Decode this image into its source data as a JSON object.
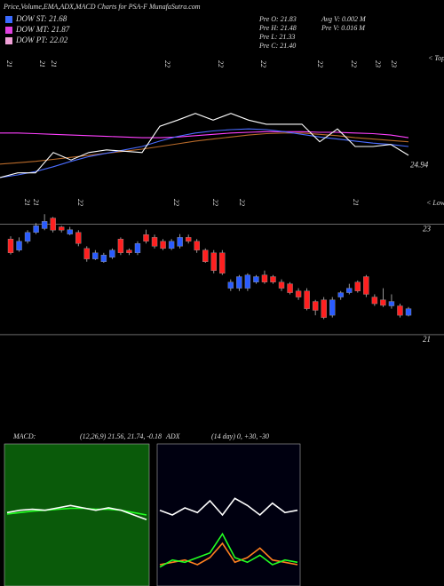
{
  "header": {
    "title": "Price,Volume,EMA,ADX,MACD Charts for PSA-F MunafaSutra.com",
    "legend": [
      {
        "label": "DOW ST: 21.68",
        "color": "#3b6bff"
      },
      {
        "label": "DOW MT: 21.87",
        "color": "#e040e0"
      },
      {
        "label": "DOW PT: 22.02",
        "color": "#f0a0d8"
      }
    ],
    "stats": [
      "Pre O: 21.83",
      "Pre H: 21.48",
      "Pre L: 21.33",
      "Pre C: 21.40",
      "Avg V: 0.002 M",
      "Pre V: 0.016 M"
    ]
  },
  "chart_data": [
    {
      "type": "line",
      "tops_label": "< Tops",
      "lows_label": "< Lows",
      "top_dates": [
        "21",
        "21",
        "21",
        "22",
        "22",
        "22",
        "22",
        "22",
        "23",
        "23"
      ],
      "low_dates": [
        "21",
        "21",
        "22",
        "22",
        "22",
        "22",
        "21"
      ],
      "ylim": [
        24.3,
        26.6
      ],
      "yticks": [
        24.94
      ],
      "series": [
        {
          "color": "#ff40ff",
          "values": [
            25.42,
            25.42,
            25.41,
            25.4,
            25.39,
            25.38,
            25.37,
            25.36,
            25.35,
            25.35,
            25.36,
            25.38,
            25.4,
            25.42,
            25.43,
            25.44,
            25.44,
            25.44,
            25.43,
            25.43,
            25.42,
            25.41,
            25.39,
            25.35
          ]
        },
        {
          "color": "#b86a2a",
          "values": [
            24.96,
            24.98,
            25.0,
            25.03,
            25.06,
            25.09,
            25.12,
            25.15,
            25.18,
            25.22,
            25.26,
            25.3,
            25.33,
            25.36,
            25.39,
            25.41,
            25.42,
            25.42,
            25.4,
            25.38,
            25.35,
            25.33,
            25.31,
            25.29
          ]
        },
        {
          "color": "#4a6cff",
          "values": [
            24.76,
            24.8,
            24.85,
            24.92,
            25.0,
            25.07,
            25.12,
            25.17,
            25.22,
            25.3,
            25.37,
            25.42,
            25.45,
            25.47,
            25.48,
            25.47,
            25.44,
            25.4,
            25.36,
            25.33,
            25.3,
            25.27,
            25.25,
            25.22
          ]
        },
        {
          "color": "#ffffff",
          "values": [
            24.76,
            24.83,
            24.83,
            25.13,
            25.02,
            25.13,
            25.17,
            25.15,
            25.13,
            25.52,
            25.61,
            25.71,
            25.61,
            25.71,
            25.61,
            25.55,
            25.55,
            25.55,
            25.29,
            25.48,
            25.22,
            25.22,
            25.25,
            25.09
          ]
        }
      ]
    },
    {
      "type": "candlestick",
      "ylim": [
        20.95,
        23.2
      ],
      "yticks": [
        21,
        23
      ],
      "grid": true,
      "up_color": "#2a5cff",
      "down_color": "#ff2020",
      "open": [
        22.73,
        22.53,
        22.69,
        22.85,
        22.92,
        23.11,
        22.95,
        22.82,
        22.85,
        22.56,
        22.37,
        22.32,
        22.4,
        22.73,
        22.53,
        22.48,
        22.81,
        22.76,
        22.69,
        22.56,
        22.6,
        22.76,
        22.69,
        22.53,
        22.48,
        22.48,
        21.84,
        21.84,
        21.84,
        21.95,
        22.08,
        22.05,
        21.95,
        21.92,
        21.79,
        21.79,
        21.6,
        21.63,
        21.35,
        21.68,
        21.76,
        21.95,
        22.05,
        21.68,
        21.63,
        21.52,
        21.52,
        21.35
      ],
      "high": [
        22.78,
        22.76,
        22.89,
        23.02,
        23.18,
        23.13,
        22.97,
        22.95,
        22.89,
        22.6,
        22.53,
        22.48,
        22.56,
        22.76,
        22.56,
        22.69,
        22.9,
        22.81,
        22.73,
        22.73,
        22.82,
        22.81,
        22.73,
        22.56,
        22.53,
        22.53,
        22.0,
        22.08,
        22.11,
        22.08,
        22.16,
        22.08,
        22.0,
        21.95,
        21.84,
        21.84,
        21.63,
        21.68,
        21.68,
        21.79,
        21.92,
        21.98,
        22.08,
        21.73,
        21.84,
        21.73,
        21.56,
        21.5
      ],
      "low": [
        22.45,
        22.5,
        22.65,
        22.82,
        22.89,
        22.85,
        22.85,
        22.8,
        22.6,
        22.32,
        22.35,
        22.3,
        22.37,
        22.44,
        22.44,
        22.44,
        22.65,
        22.56,
        22.53,
        22.53,
        22.56,
        22.65,
        22.48,
        22.3,
        22.11,
        22.08,
        21.79,
        21.79,
        21.79,
        21.92,
        21.92,
        21.92,
        21.79,
        21.73,
        21.63,
        21.44,
        21.35,
        21.28,
        21.31,
        21.63,
        21.73,
        21.76,
        21.68,
        21.52,
        21.5,
        21.47,
        21.31,
        21.33
      ],
      "close": [
        22.48,
        22.69,
        22.85,
        22.97,
        23.05,
        22.89,
        22.89,
        22.9,
        22.65,
        22.37,
        22.48,
        22.44,
        22.53,
        22.48,
        22.48,
        22.65,
        22.69,
        22.6,
        22.56,
        22.69,
        22.76,
        22.69,
        22.53,
        22.32,
        22.16,
        22.11,
        21.95,
        22.05,
        22.08,
        22.05,
        21.95,
        21.95,
        21.84,
        21.76,
        21.68,
        21.47,
        21.44,
        21.31,
        21.63,
        21.76,
        21.84,
        21.79,
        21.73,
        21.56,
        21.53,
        21.6,
        21.35,
        21.47
      ]
    },
    {
      "type": "macd",
      "title": "MACD:",
      "subtitle": "(12,26,9) 21.56, 21.74, -0.18",
      "background": "#0a5a0a",
      "ylim": [
        -1.5,
        1.5
      ],
      "series": [
        {
          "color": "#22ff22",
          "values": [
            0.02,
            0.05,
            0.08,
            0.1,
            0.12,
            0.14,
            0.14,
            0.12,
            0.12,
            0.1,
            0.05,
            0.0
          ]
        },
        {
          "color": "#ffffff",
          "values": [
            0.05,
            0.1,
            0.12,
            0.1,
            0.15,
            0.2,
            0.15,
            0.1,
            0.15,
            0.1,
            0.0,
            -0.1
          ]
        }
      ]
    },
    {
      "type": "adx",
      "title": "ADX",
      "subtitle": "(14 day) 0, +30, -30",
      "background": "#000010",
      "ylim": [
        0,
        60
      ],
      "series": [
        {
          "color": "#ff8020",
          "values": [
            9,
            10,
            11,
            9,
            12,
            18,
            10,
            12,
            16,
            11,
            10,
            9
          ]
        },
        {
          "color": "#22ff22",
          "values": [
            8,
            11,
            10,
            12,
            14,
            22,
            12,
            10,
            13,
            9,
            11,
            10
          ]
        },
        {
          "color": "#ffffff",
          "values": [
            32,
            30,
            33,
            31,
            36,
            30,
            37,
            34,
            30,
            35,
            31,
            32
          ]
        }
      ]
    }
  ]
}
